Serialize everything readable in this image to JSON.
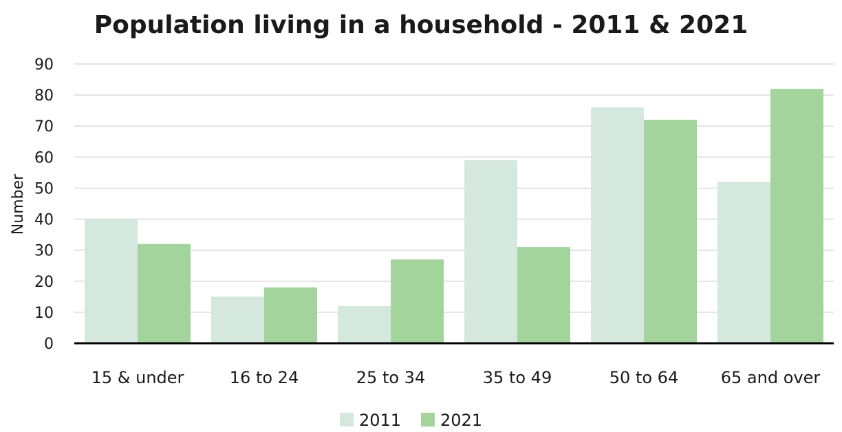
{
  "chart_data": {
    "type": "bar",
    "title": "Population living in a household - 2011 & 2021",
    "xlabel": "",
    "ylabel": "Number",
    "categories": [
      "15 & under",
      "16 to 24",
      "25 to 34",
      "35 to 49",
      "50 to 64",
      "65 and over"
    ],
    "series": [
      {
        "name": "2011",
        "color": "#d5e8dd",
        "values": [
          40,
          15,
          12,
          59,
          76,
          52
        ]
      },
      {
        "name": "2021",
        "color": "#a3d49c",
        "values": [
          32,
          18,
          27,
          31,
          72,
          82
        ]
      }
    ],
    "ylim": [
      0,
      90
    ],
    "yticks": [
      0,
      10,
      20,
      30,
      40,
      50,
      60,
      70,
      80,
      90
    ],
    "grid": true,
    "legend_position": "bottom"
  }
}
